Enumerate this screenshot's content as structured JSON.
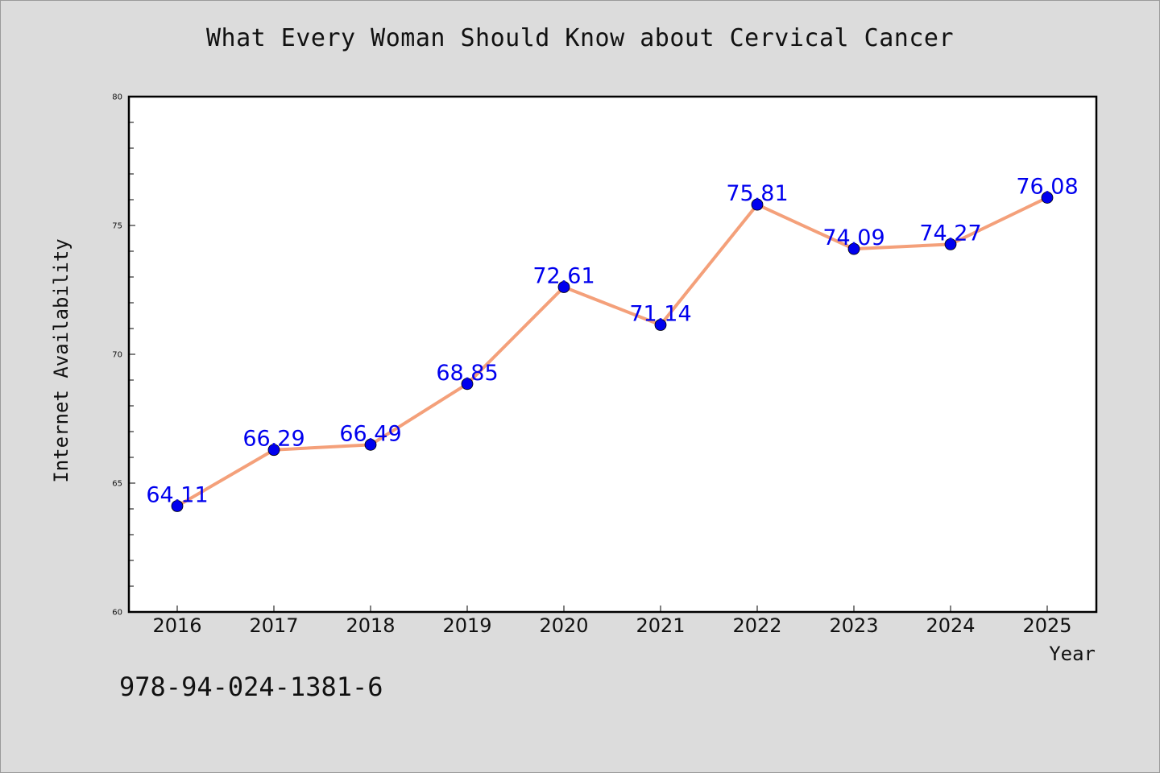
{
  "chart_data": {
    "type": "line",
    "title": "What Every Woman Should Know about Cervical Cancer",
    "xlabel": "Year",
    "ylabel": "Internet Availability",
    "x": [
      "2016",
      "2017",
      "2018",
      "2019",
      "2020",
      "2021",
      "2022",
      "2023",
      "2024",
      "2025"
    ],
    "series": [
      {
        "values": [
          64.11,
          66.29,
          66.49,
          68.85,
          72.61,
          71.14,
          75.81,
          74.09,
          74.27,
          76.08
        ],
        "labels": [
          "64.11",
          "66.29",
          "66.49",
          "68.85",
          "72.61",
          "71.14",
          "75.81",
          "74.09",
          "74.27",
          "76.08"
        ],
        "line_color": "#f4a07a",
        "marker_color": "#0000ee"
      }
    ],
    "ylim": [
      60,
      80
    ],
    "yticks": [
      "60",
      "65",
      "70",
      "75",
      "80"
    ],
    "grid": false,
    "legend": "none"
  },
  "footer": {
    "isbn": "978-94-024-1381-6"
  }
}
